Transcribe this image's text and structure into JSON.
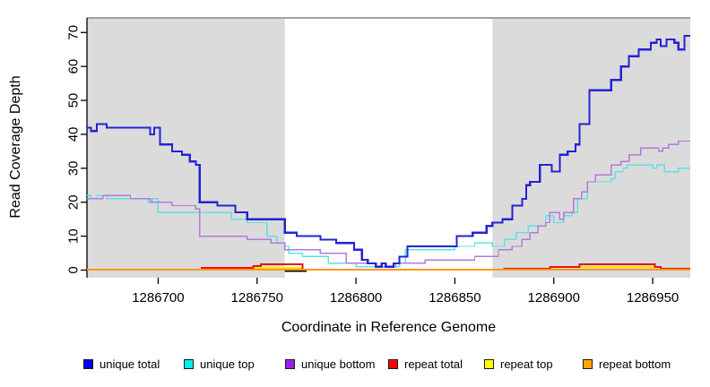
{
  "chart_data": {
    "type": "line",
    "step": true,
    "title": "",
    "xlabel": "Coordinate in Reference Genome",
    "ylabel": "Read Coverage Depth",
    "xlim": [
      1286664,
      1286969
    ],
    "ylim": [
      0,
      70
    ],
    "x_ticks": [
      1286700,
      1286750,
      1286800,
      1286850,
      1286900,
      1286950
    ],
    "y_ticks": [
      0,
      10,
      20,
      30,
      40,
      50,
      60,
      70
    ],
    "grid": false,
    "legend_position": "bottom",
    "background_regions": [
      {
        "name": "left-shaded-region",
        "x0": 1286664,
        "x1": 1286764,
        "color": "#dbdbdb"
      },
      {
        "name": "right-shaded-region",
        "x0": 1286869,
        "x1": 1286969,
        "color": "#dbdbdb"
      }
    ],
    "region_top_edge_color": "#a0a0a0",
    "annotations": [
      {
        "type": "segment",
        "name": "black-zero-segment",
        "x0": 1286764,
        "x1": 1286775,
        "y": -0.3,
        "color": "#000000"
      }
    ],
    "series": [
      {
        "name": "unique_total",
        "label": "unique total",
        "color": "#2323d6",
        "legend_color": "#0000ee",
        "points": [
          [
            1286664,
            42
          ],
          [
            1286666,
            41
          ],
          [
            1286669,
            43
          ],
          [
            1286674,
            42
          ],
          [
            1286696,
            40
          ],
          [
            1286698,
            42
          ],
          [
            1286701,
            37
          ],
          [
            1286707,
            35
          ],
          [
            1286712,
            34
          ],
          [
            1286716,
            32
          ],
          [
            1286719,
            31
          ],
          [
            1286721,
            20
          ],
          [
            1286730,
            19
          ],
          [
            1286739,
            17
          ],
          [
            1286745,
            15
          ],
          [
            1286764,
            11
          ],
          [
            1286770,
            10
          ],
          [
            1286782,
            9
          ],
          [
            1286790,
            8
          ],
          [
            1286799,
            6
          ],
          [
            1286803,
            3
          ],
          [
            1286806,
            2
          ],
          [
            1286810,
            1
          ],
          [
            1286813,
            2
          ],
          [
            1286815,
            1
          ],
          [
            1286819,
            2
          ],
          [
            1286822,
            4
          ],
          [
            1286826,
            7
          ],
          [
            1286851,
            10
          ],
          [
            1286859,
            11
          ],
          [
            1286866,
            13
          ],
          [
            1286869,
            14
          ],
          [
            1286874,
            15
          ],
          [
            1286879,
            19
          ],
          [
            1286884,
            21
          ],
          [
            1286886,
            25
          ],
          [
            1286888,
            26
          ],
          [
            1286893,
            31
          ],
          [
            1286899,
            29
          ],
          [
            1286903,
            34
          ],
          [
            1286907,
            35
          ],
          [
            1286911,
            37
          ],
          [
            1286913,
            43
          ],
          [
            1286918,
            53
          ],
          [
            1286929,
            56
          ],
          [
            1286934,
            60
          ],
          [
            1286938,
            63
          ],
          [
            1286943,
            65
          ],
          [
            1286949,
            67
          ],
          [
            1286952,
            68
          ],
          [
            1286954,
            66
          ],
          [
            1286957,
            68
          ],
          [
            1286961,
            67
          ],
          [
            1286963,
            65
          ],
          [
            1286966,
            69
          ]
        ]
      },
      {
        "name": "unique_top",
        "label": "unique top",
        "color": "#5fe0e4",
        "legend_color": "#00eeee",
        "points": [
          [
            1286664,
            22
          ],
          [
            1286666,
            21
          ],
          [
            1286669,
            22
          ],
          [
            1286674,
            21
          ],
          [
            1286695,
            20
          ],
          [
            1286697,
            21
          ],
          [
            1286700,
            17
          ],
          [
            1286737,
            15
          ],
          [
            1286745,
            14
          ],
          [
            1286755,
            10
          ],
          [
            1286760,
            8
          ],
          [
            1286764,
            7
          ],
          [
            1286766,
            5
          ],
          [
            1286773,
            4
          ],
          [
            1286786,
            2
          ],
          [
            1286800,
            1
          ],
          [
            1286822,
            2
          ],
          [
            1286825,
            6
          ],
          [
            1286850,
            7
          ],
          [
            1286860,
            8
          ],
          [
            1286869,
            7
          ],
          [
            1286875,
            9
          ],
          [
            1286881,
            11
          ],
          [
            1286887,
            13
          ],
          [
            1286896,
            16
          ],
          [
            1286900,
            14
          ],
          [
            1286905,
            16
          ],
          [
            1286909,
            17
          ],
          [
            1286912,
            21
          ],
          [
            1286917,
            26
          ],
          [
            1286929,
            27
          ],
          [
            1286931,
            29
          ],
          [
            1286935,
            30
          ],
          [
            1286937,
            31
          ],
          [
            1286950,
            30
          ],
          [
            1286952,
            31
          ],
          [
            1286956,
            29
          ],
          [
            1286963,
            30
          ]
        ]
      },
      {
        "name": "unique_bottom",
        "label": "unique bottom",
        "color": "#b27ade",
        "legend_color": "#9b1fe8",
        "points": [
          [
            1286664,
            21
          ],
          [
            1286672,
            22
          ],
          [
            1286686,
            21
          ],
          [
            1286696,
            20
          ],
          [
            1286707,
            19
          ],
          [
            1286719,
            18
          ],
          [
            1286721,
            10
          ],
          [
            1286745,
            9
          ],
          [
            1286757,
            8
          ],
          [
            1286764,
            6
          ],
          [
            1286782,
            5
          ],
          [
            1286795,
            2
          ],
          [
            1286810,
            1
          ],
          [
            1286820,
            2
          ],
          [
            1286835,
            3
          ],
          [
            1286860,
            4
          ],
          [
            1286872,
            6
          ],
          [
            1286879,
            7
          ],
          [
            1286884,
            9
          ],
          [
            1286888,
            11
          ],
          [
            1286892,
            13
          ],
          [
            1286896,
            14
          ],
          [
            1286898,
            17
          ],
          [
            1286903,
            15
          ],
          [
            1286905,
            17
          ],
          [
            1286910,
            21
          ],
          [
            1286914,
            23
          ],
          [
            1286917,
            26
          ],
          [
            1286921,
            28
          ],
          [
            1286929,
            31
          ],
          [
            1286934,
            32
          ],
          [
            1286938,
            34
          ],
          [
            1286944,
            36
          ],
          [
            1286953,
            35
          ],
          [
            1286955,
            36
          ],
          [
            1286958,
            37
          ],
          [
            1286963,
            38
          ]
        ]
      },
      {
        "name": "repeat_total",
        "label": "repeat total",
        "color": "#ee1111",
        "legend_color": "#ff0000",
        "points": [
          [
            1286664,
            0.15
          ],
          [
            1286722,
            0.6
          ],
          [
            1286748,
            1.2
          ],
          [
            1286752,
            1.7
          ],
          [
            1286773,
            0.15
          ],
          [
            1286875,
            0.4
          ],
          [
            1286898,
            0.9
          ],
          [
            1286913,
            1.7
          ],
          [
            1286951,
            0.9
          ],
          [
            1286954,
            0.4
          ]
        ]
      },
      {
        "name": "repeat_top",
        "label": "repeat top",
        "color": "#ffe800",
        "legend_color": "#ffff00",
        "points": [
          [
            1286664,
            0.1
          ],
          [
            1286748,
            0.6
          ],
          [
            1286773,
            0.1
          ],
          [
            1286901,
            0.9
          ],
          [
            1286951,
            0.1
          ]
        ]
      },
      {
        "name": "repeat_bottom",
        "label": "repeat bottom",
        "color": "#ff9912",
        "legend_color": "#ffa500",
        "points": [
          [
            1286664,
            0.15
          ]
        ]
      }
    ]
  },
  "legend": {
    "items": [
      "unique total",
      "unique top",
      "unique bottom",
      "repeat total",
      "repeat top",
      "repeat bottom"
    ]
  }
}
